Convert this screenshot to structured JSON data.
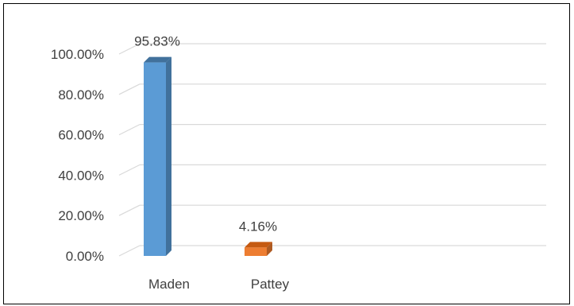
{
  "chart_data": {
    "type": "bar",
    "style": "3d-column",
    "categories": [
      "Maden",
      "Pattey"
    ],
    "values": [
      95.83,
      4.16
    ],
    "data_labels": [
      "95.83%",
      "4.16%"
    ],
    "y_ticks": [
      "0.00%",
      "20.00%",
      "40.00%",
      "60.00%",
      "80.00%",
      "100.00%"
    ],
    "ylim": [
      0,
      100
    ],
    "grid": true,
    "legend": "none",
    "colors": {
      "Maden": {
        "front": "#5b9bd5",
        "side": "#41719c",
        "top": "#41719c"
      },
      "Pattey": {
        "front": "#ed7d31",
        "side": "#ae5a21",
        "top": "#c55a11"
      },
      "gridline": "#d9d9d9",
      "text": "#404040"
    }
  }
}
